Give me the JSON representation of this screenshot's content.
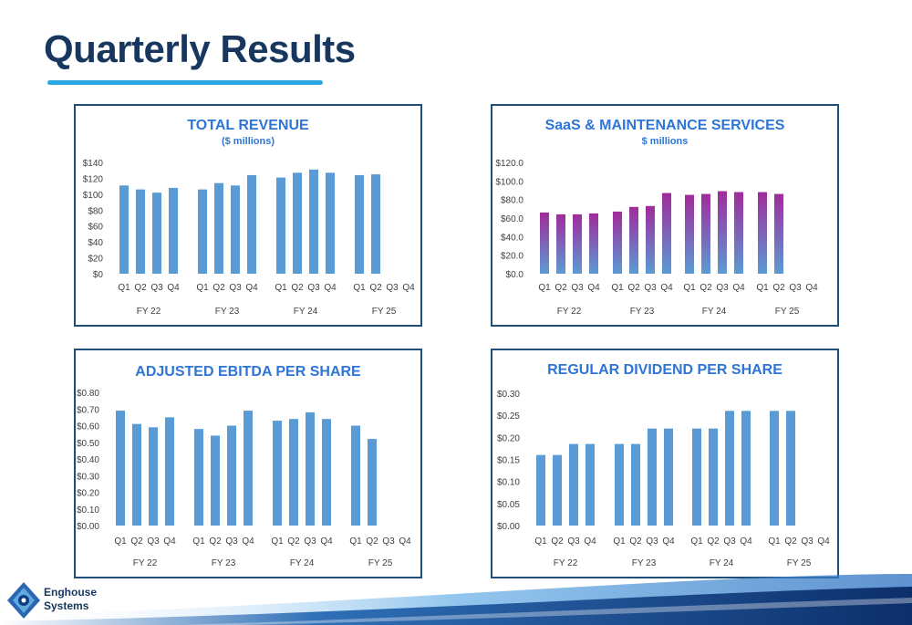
{
  "page": {
    "title": "Quarterly Results"
  },
  "logo": {
    "line1": "Enghouse",
    "line2": "Systems"
  },
  "colors": {
    "title": "#17375e",
    "underline": "#29a7e1",
    "bar": "#5b9bd5",
    "saas_top": "#a12b9b",
    "saas_bottom": "#5b9bd5",
    "panel_border": "#1f4e79"
  },
  "chart_data": [
    {
      "id": "revenue",
      "type": "bar",
      "title": "TOTAL REVENUE",
      "subtitle": "($ millions)",
      "quarters": [
        "Q1",
        "Q2",
        "Q3",
        "Q4"
      ],
      "years": [
        "FY 22",
        "FY 23",
        "FY 24",
        "FY 25"
      ],
      "yticks": [
        "$0",
        "$20",
        "$40",
        "$60",
        "$80",
        "$100",
        "$120",
        "$140"
      ],
      "ylim": [
        0,
        140
      ],
      "values": [
        [
          111,
          106,
          102,
          108
        ],
        [
          106,
          114,
          111,
          124
        ],
        [
          121,
          127,
          131,
          127
        ],
        [
          124,
          125,
          null,
          null
        ]
      ]
    },
    {
      "id": "saas",
      "type": "bar",
      "title": "SaaS & MAINTENANCE SERVICES",
      "subtitle": "$ millions",
      "quarters": [
        "Q1",
        "Q2",
        "Q3",
        "Q4"
      ],
      "years": [
        "FY 22",
        "FY 23",
        "FY 24",
        "FY 25"
      ],
      "yticks": [
        "$0.0",
        "$20.0",
        "$40.0",
        "$60.0",
        "$80.0",
        "$100.0",
        "$120.0"
      ],
      "ylim": [
        0,
        120
      ],
      "values": [
        [
          66,
          64,
          64,
          65
        ],
        [
          67,
          72,
          73,
          87
        ],
        [
          85,
          86,
          89,
          88
        ],
        [
          88,
          86,
          null,
          null
        ]
      ]
    },
    {
      "id": "ebitda",
      "type": "bar",
      "title": "ADJUSTED EBITDA PER SHARE",
      "subtitle": "",
      "quarters": [
        "Q1",
        "Q2",
        "Q3",
        "Q4"
      ],
      "years": [
        "FY 22",
        "FY 23",
        "FY 24",
        "FY 25"
      ],
      "yticks": [
        "$0.00",
        "$0.10",
        "$0.20",
        "$0.30",
        "$0.40",
        "$0.50",
        "$0.60",
        "$0.70",
        "$0.80"
      ],
      "ylim": [
        0,
        0.8
      ],
      "values": [
        [
          0.69,
          0.61,
          0.59,
          0.65
        ],
        [
          0.58,
          0.54,
          0.6,
          0.69
        ],
        [
          0.63,
          0.64,
          0.68,
          0.64
        ],
        [
          0.6,
          0.52,
          null,
          null
        ]
      ]
    },
    {
      "id": "dividend",
      "type": "bar",
      "title": "REGULAR DIVIDEND PER SHARE",
      "subtitle": "",
      "quarters": [
        "Q1",
        "Q2",
        "Q3",
        "Q4"
      ],
      "years": [
        "FY 22",
        "FY 23",
        "FY 24",
        "FY 25"
      ],
      "yticks": [
        "$0.00",
        "$0.05",
        "$0.10",
        "$0.15",
        "$0.20",
        "$0.25",
        "$0.30"
      ],
      "ylim": [
        0,
        0.3
      ],
      "values": [
        [
          0.16,
          0.16,
          0.185,
          0.185
        ],
        [
          0.185,
          0.185,
          0.22,
          0.22
        ],
        [
          0.22,
          0.22,
          0.26,
          0.26
        ],
        [
          0.26,
          0.26,
          null,
          null
        ]
      ]
    }
  ]
}
